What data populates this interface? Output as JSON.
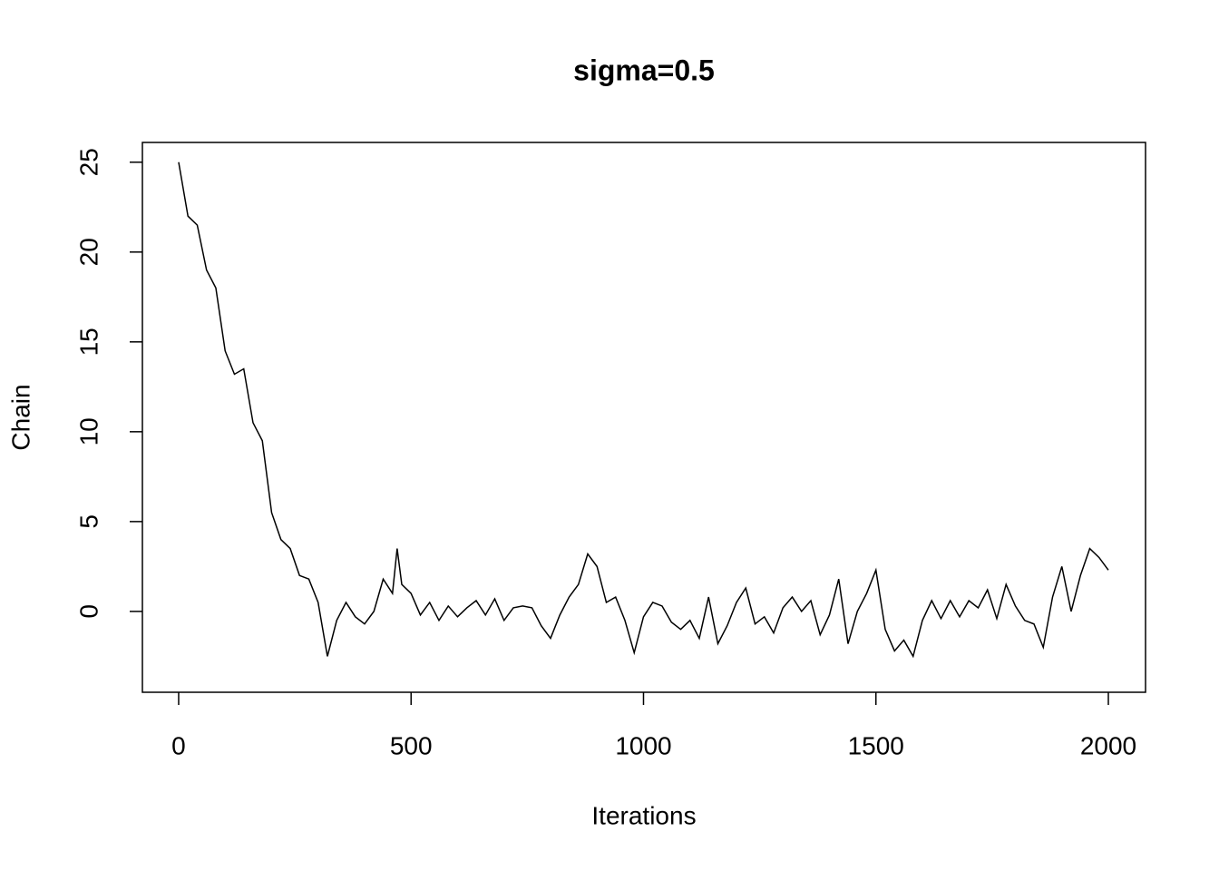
{
  "chart_data": {
    "type": "line",
    "title": "sigma=0.5",
    "x_label": "Iterations",
    "y_label": "Chain",
    "x": [
      0,
      20,
      40,
      60,
      80,
      100,
      120,
      140,
      160,
      180,
      200,
      220,
      240,
      260,
      280,
      300,
      320,
      340,
      360,
      380,
      400,
      420,
      440,
      460,
      470,
      480,
      500,
      520,
      540,
      560,
      580,
      600,
      620,
      640,
      660,
      680,
      700,
      720,
      740,
      760,
      780,
      800,
      820,
      840,
      860,
      880,
      900,
      920,
      940,
      960,
      980,
      1000,
      1020,
      1040,
      1060,
      1080,
      1100,
      1120,
      1140,
      1160,
      1180,
      1200,
      1220,
      1240,
      1260,
      1280,
      1300,
      1320,
      1340,
      1360,
      1380,
      1400,
      1420,
      1440,
      1460,
      1480,
      1500,
      1520,
      1540,
      1560,
      1580,
      1600,
      1620,
      1640,
      1660,
      1680,
      1700,
      1720,
      1740,
      1760,
      1780,
      1800,
      1820,
      1840,
      1860,
      1880,
      1900,
      1920,
      1940,
      1960,
      1980,
      2000
    ],
    "series": [
      {
        "name": "Chain",
        "color": "#000000",
        "values": [
          25,
          22,
          21.5,
          19,
          18,
          14.5,
          13.2,
          13.5,
          10.5,
          9.5,
          5.5,
          4,
          3.5,
          2,
          1.8,
          0.5,
          -2.5,
          -0.5,
          0.5,
          -0.3,
          -0.7,
          0,
          1.8,
          1,
          3.5,
          1.5,
          1,
          -0.2,
          0.5,
          -0.5,
          0.3,
          -0.3,
          0.2,
          0.6,
          -0.2,
          0.7,
          -0.5,
          0.2,
          0.3,
          0.2,
          -0.8,
          -1.5,
          -0.2,
          0.8,
          1.5,
          3.2,
          2.5,
          0.5,
          0.8,
          -0.5,
          -2.3,
          -0.3,
          0.5,
          0.3,
          -0.6,
          -1,
          -0.5,
          -1.5,
          0.8,
          -1.8,
          -0.8,
          0.5,
          1.3,
          -0.7,
          -0.3,
          -1.2,
          0.2,
          0.8,
          0,
          0.6,
          -1.3,
          -0.2,
          1.8,
          -1.8,
          0,
          1,
          2.3,
          -1,
          -2.2,
          -1.6,
          -2.5,
          -0.5,
          0.6,
          -0.4,
          0.6,
          -0.3,
          0.6,
          0.2,
          1.2,
          -0.4,
          1.5,
          0.3,
          -0.5,
          -0.7,
          -2,
          0.8,
          2.5,
          0,
          2,
          3.5,
          3,
          2.3
        ]
      }
    ],
    "xlim": [
      -78,
      2080
    ],
    "ylim": [
      -4.5,
      26.1
    ],
    "xticks": [
      0,
      500,
      1000,
      1500,
      2000
    ],
    "yticks": [
      0,
      5,
      10,
      15,
      20,
      25
    ],
    "grid": false
  }
}
